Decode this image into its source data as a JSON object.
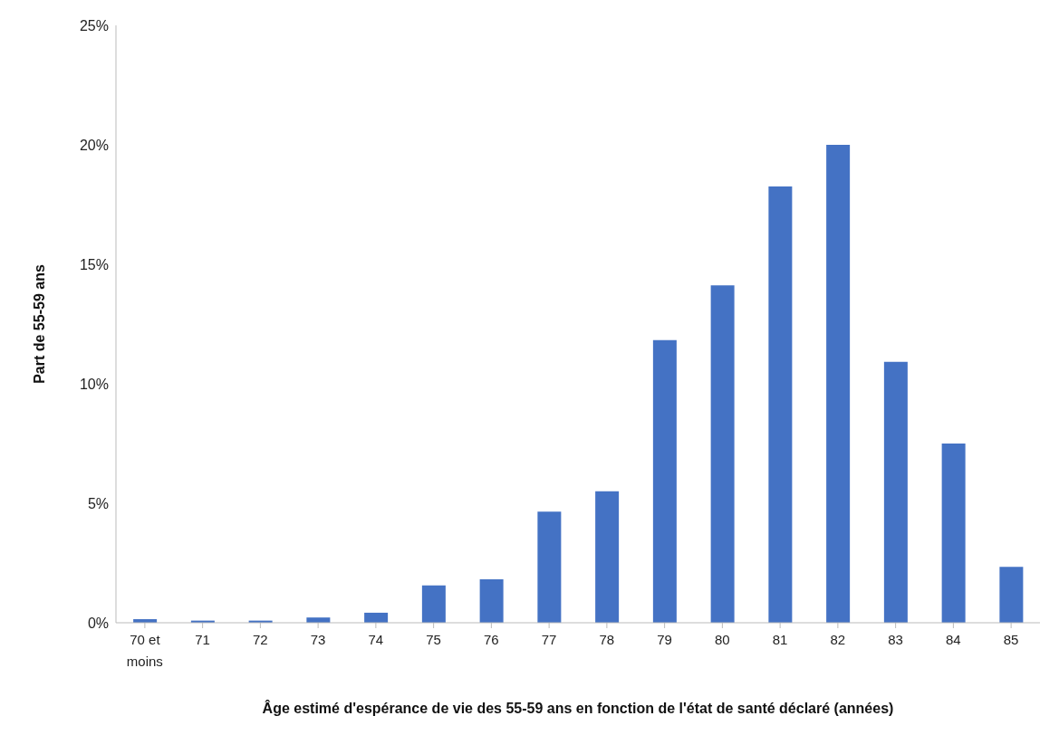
{
  "chart_data": {
    "type": "bar",
    "xlabel": "Âge estimé d'espérance de vie des 55-59 ans en fonction de l'état de santé déclaré (années)",
    "ylabel": "Part de 55-59 ans",
    "categories": [
      "70 et moins",
      "71",
      "72",
      "73",
      "74",
      "75",
      "76",
      "77",
      "78",
      "79",
      "80",
      "81",
      "82",
      "83",
      "84",
      "85"
    ],
    "values": [
      0.15,
      0.09,
      0.09,
      0.22,
      0.42,
      1.56,
      1.82,
      4.65,
      5.5,
      11.83,
      14.12,
      18.26,
      20.0,
      10.92,
      7.5,
      2.34
    ],
    "color": "#4472c4",
    "ylim": [
      0,
      25
    ],
    "yticks": [
      {
        "value": 0,
        "label": "0%"
      },
      {
        "value": 5,
        "label": "5%"
      },
      {
        "value": 10,
        "label": "10%"
      },
      {
        "value": 15,
        "label": "15%"
      },
      {
        "value": 20,
        "label": "20%"
      },
      {
        "value": 25,
        "label": "25%"
      }
    ],
    "grid": false
  }
}
